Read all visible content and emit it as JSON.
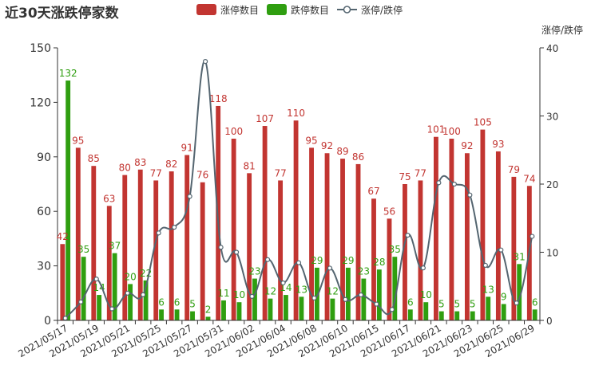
{
  "chart_data": {
    "type": "bar",
    "title": "近30天涨跌停家数",
    "colors": {
      "up": "#c23531",
      "down": "#2f9e10",
      "ratio": "#546570",
      "axis": "#333333",
      "grid": "#e6e6e6",
      "ratio_axis": "#6e7079"
    },
    "categories": [
      "2021/05/17",
      "2021/05/18",
      "2021/05/19",
      "2021/05/20",
      "2021/05/21",
      "2021/05/24",
      "2021/05/25",
      "2021/05/26",
      "2021/05/27",
      "2021/05/28",
      "2021/05/31",
      "2021/06/01",
      "2021/06/02",
      "2021/06/03",
      "2021/06/04",
      "2021/06/07",
      "2021/06/08",
      "2021/06/09",
      "2021/06/10",
      "2021/06/11",
      "2021/06/15",
      "2021/06/16",
      "2021/06/17",
      "2021/06/18",
      "2021/06/21",
      "2021/06/22",
      "2021/06/23",
      "2021/06/24",
      "2021/06/25",
      "2021/06/28",
      "2021/06/29"
    ],
    "tick_labels": [
      "2021/05/17",
      "2021/05/19",
      "2021/05/21",
      "2021/05/25",
      "2021/05/27",
      "2021/05/31",
      "2021/06/02",
      "2021/06/04",
      "2021/06/08",
      "2021/06/10",
      "2021/06/15",
      "2021/06/17",
      "2021/06/21",
      "2021/06/23",
      "2021/06/25",
      "2021/06/29"
    ],
    "series": [
      {
        "name": "涨停数目",
        "values": [
          42,
          95,
          85,
          63,
          80,
          83,
          77,
          82,
          91,
          76,
          118,
          100,
          81,
          107,
          77,
          110,
          95,
          92,
          89,
          86,
          67,
          56,
          75,
          77,
          101,
          100,
          92,
          105,
          93,
          79,
          74
        ]
      },
      {
        "name": "跌停数目",
        "values": [
          132,
          35,
          14,
          37,
          20,
          22,
          6,
          6,
          5,
          2,
          11,
          10,
          23,
          12,
          14,
          13,
          29,
          12,
          29,
          23,
          28,
          35,
          6,
          10,
          5,
          5,
          5,
          13,
          9,
          31,
          6
        ]
      },
      {
        "name": "涨停/跌停",
        "values": [
          0.32,
          2.71,
          6.07,
          1.7,
          4.0,
          3.77,
          12.83,
          13.67,
          18.2,
          38.0,
          10.73,
          10.0,
          3.52,
          8.92,
          5.5,
          8.46,
          3.28,
          7.67,
          3.07,
          3.74,
          2.39,
          1.6,
          12.5,
          7.7,
          20.2,
          20.0,
          18.4,
          8.08,
          10.33,
          2.55,
          12.33
        ]
      }
    ],
    "y_left": {
      "min": 0,
      "max": 150,
      "ticks": [
        0,
        30,
        60,
        90,
        120,
        150
      ]
    },
    "y_right": {
      "min": 0,
      "max": 40,
      "ticks": [
        0,
        10,
        20,
        30,
        40
      ],
      "label": "涨停/跌停"
    },
    "legend_position": "top-center",
    "grid": false
  }
}
